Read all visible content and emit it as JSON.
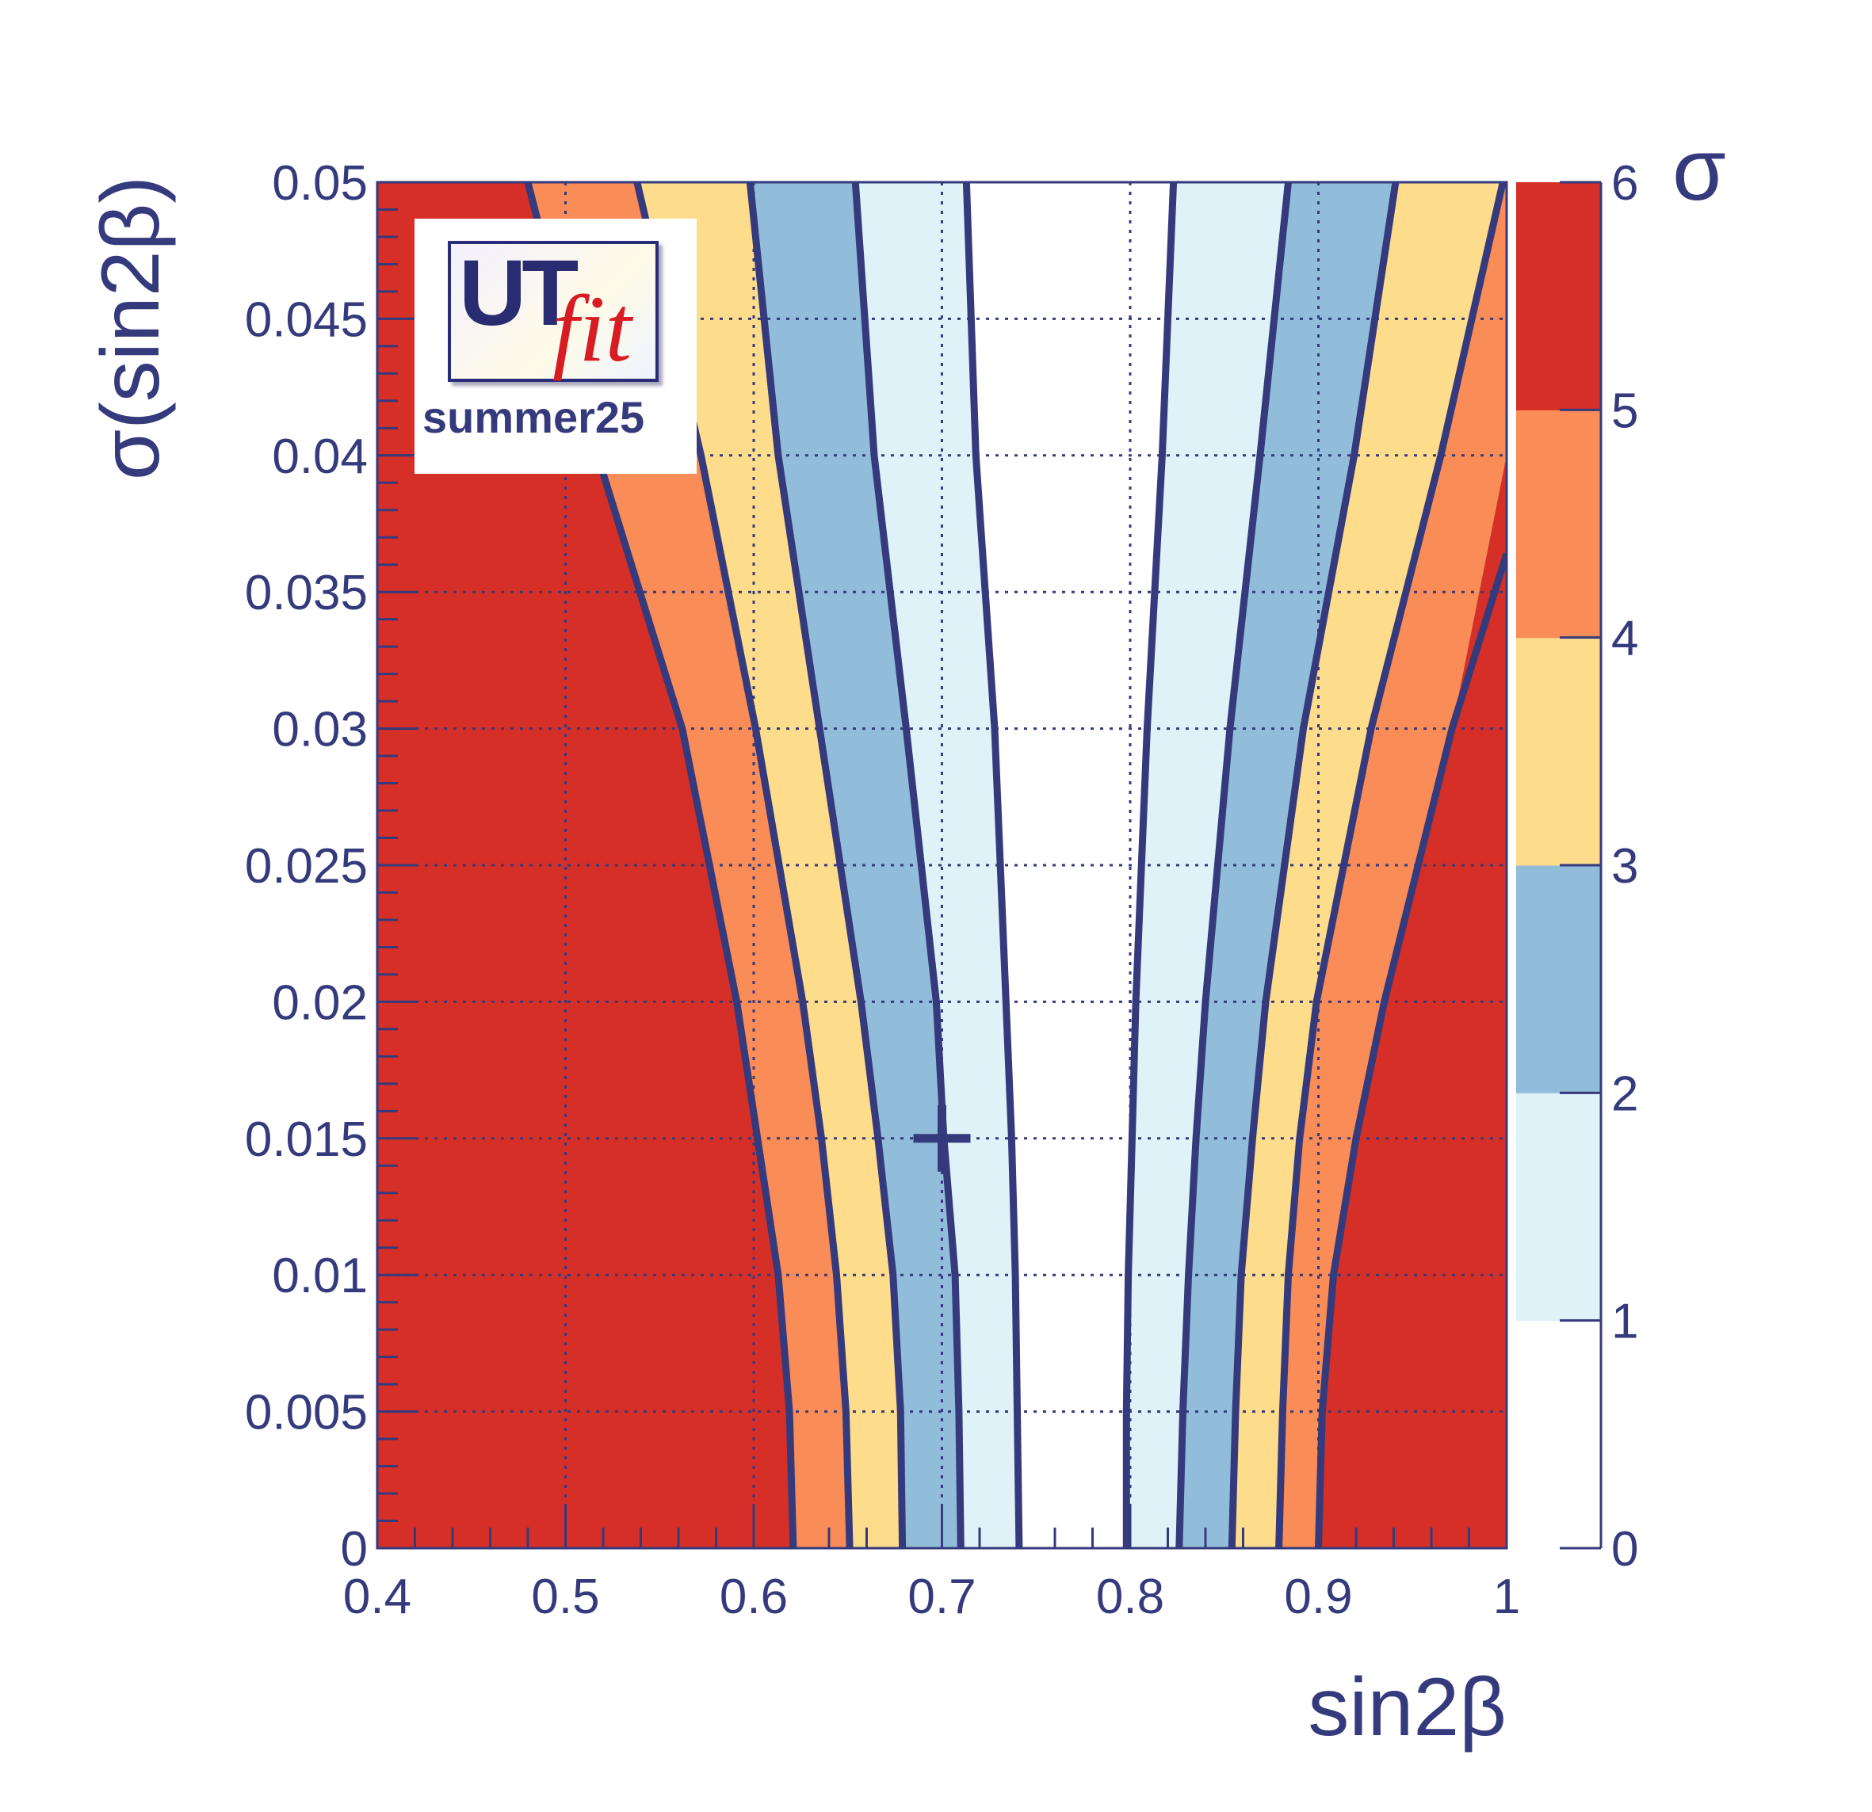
{
  "chart_data": {
    "type": "heatmap",
    "subtype": "filled-contour",
    "xlabel": "sin2β",
    "ylabel": "σ(sin2β)",
    "colorbar_label": "σ",
    "xlim": [
      0.4,
      1.0
    ],
    "ylim": [
      0,
      0.05
    ],
    "x_ticks": [
      "0.4",
      "0.5",
      "0.6",
      "0.7",
      "0.8",
      "0.9",
      "1"
    ],
    "y_ticks": [
      "0",
      "0.005",
      "0.01",
      "0.015",
      "0.02",
      "0.025",
      "0.03",
      "0.035",
      "0.04",
      "0.045",
      "0.05"
    ],
    "colorbar_ticks": [
      "0",
      "1",
      "2",
      "3",
      "4",
      "5",
      "6"
    ],
    "colorbar_range": [
      0,
      6
    ],
    "grid": true,
    "levels": [
      {
        "range": [
          0,
          1
        ],
        "color": "#ffffff"
      },
      {
        "range": [
          1,
          2
        ],
        "color": "#dff2f8"
      },
      {
        "range": [
          2,
          3
        ],
        "color": "#91bdda"
      },
      {
        "range": [
          3,
          4
        ],
        "color": "#fddc8c"
      },
      {
        "range": [
          4,
          5
        ],
        "color": "#f98c57"
      },
      {
        "range": [
          5,
          6
        ],
        "color": "#d62f27"
      }
    ],
    "contour_color": "#353a7c",
    "y_samples": [
      0.05,
      0.04,
      0.03,
      0.02,
      0.015,
      0.01,
      0.005,
      0
    ],
    "contours": [
      {
        "sigma": 1,
        "left": [
          0.713,
          0.718,
          0.728,
          0.734,
          0.737,
          0.739,
          0.74,
          0.741
        ],
        "right": [
          0.823,
          0.817,
          0.809,
          0.803,
          0.801,
          0.799,
          0.798,
          0.798
        ]
      },
      {
        "sigma": 2,
        "left": [
          0.654,
          0.664,
          0.681,
          0.697,
          0.701,
          0.707,
          0.709,
          0.71
        ],
        "right": [
          0.884,
          0.869,
          0.853,
          0.84,
          0.835,
          0.831,
          0.828,
          0.826
        ]
      },
      {
        "sigma": 3,
        "left": [
          0.598,
          0.613,
          0.635,
          0.657,
          0.666,
          0.674,
          0.678,
          0.679
        ],
        "right": [
          0.941,
          0.919,
          0.892,
          0.872,
          0.865,
          0.859,
          0.856,
          0.854
        ]
      },
      {
        "sigma": 4,
        "left": [
          0.538,
          0.572,
          0.601,
          0.626,
          0.636,
          0.644,
          0.649,
          0.651
        ],
        "right": [
          0.998,
          0.965,
          0.928,
          0.899,
          0.89,
          0.884,
          0.881,
          0.879
        ]
      },
      {
        "sigma": 5,
        "left": [
          0.48,
          0.517,
          0.562,
          0.591,
          0.602,
          0.613,
          0.619,
          0.621
        ],
        "right": [
          1.0,
          1.0,
          0.971,
          0.935,
          0.92,
          0.908,
          0.902,
          0.9
        ],
        "right_edge_start_y": 0.0364
      }
    ],
    "best_fit_marker": {
      "x": 0.7,
      "y": 0.015
    }
  },
  "logo": {
    "main": "UT",
    "script": "fit",
    "caption": "summer25"
  }
}
